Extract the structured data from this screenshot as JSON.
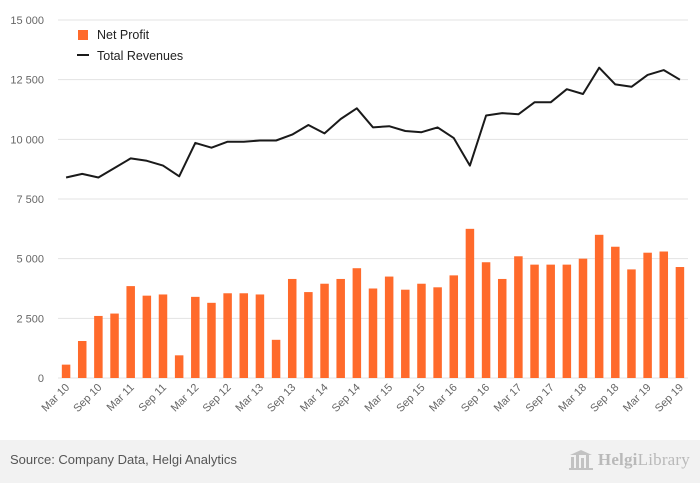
{
  "colors": {
    "bars": "#ff6a2b",
    "line": "#1a1a1a",
    "grid": "#e3e3e3",
    "axis_text": "#666666",
    "footer_bg": "#f2f2f2"
  },
  "footer": {
    "source": "Source: Company Data, Helgi Analytics",
    "brand_bold": "Helgi",
    "brand_regular": "Library"
  },
  "chart_data": {
    "type": "bar",
    "title": "",
    "xlabel": "",
    "ylabel": "",
    "ylim": [
      0,
      15000
    ],
    "yticks": [
      0,
      2500,
      5000,
      7500,
      10000,
      12500,
      15000
    ],
    "ytick_labels": [
      "0",
      "2 500",
      "5 000",
      "7 500",
      "10 000",
      "12 500",
      "15 000"
    ],
    "grid": "horizontal",
    "legend_position": "top-left",
    "categories": [
      "Mar 10",
      "Jun 10",
      "Sep 10",
      "Dec 10",
      "Mar 11",
      "Jun 11",
      "Sep 11",
      "Dec 11",
      "Mar 12",
      "Jun 12",
      "Sep 12",
      "Dec 12",
      "Mar 13",
      "Jun 13",
      "Sep 13",
      "Dec 13",
      "Mar 14",
      "Jun 14",
      "Sep 14",
      "Dec 14",
      "Mar 15",
      "Jun 15",
      "Sep 15",
      "Dec 15",
      "Mar 16",
      "Jun 16",
      "Sep 16",
      "Dec 16",
      "Mar 17",
      "Jun 17",
      "Sep 17",
      "Dec 17",
      "Mar 18",
      "Jun 18",
      "Sep 18",
      "Dec 18",
      "Mar 19",
      "Jun 19",
      "Sep 19"
    ],
    "visible_tick_labels": [
      "Mar 10",
      "Sep 10",
      "Mar 11",
      "Sep 11",
      "Mar 12",
      "Sep 12",
      "Mar 13",
      "Sep 13",
      "Mar 14",
      "Sep 14",
      "Mar 15",
      "Sep 15",
      "Mar 16",
      "Sep 16",
      "Mar 17",
      "Sep 17",
      "Mar 18",
      "Sep 18",
      "Mar 19",
      "Sep 19"
    ],
    "series": [
      {
        "name": "Net Profit",
        "type": "bar",
        "values": [
          560,
          1550,
          2600,
          2700,
          3850,
          3450,
          3500,
          950,
          3400,
          3150,
          3550,
          3550,
          3500,
          1600,
          4150,
          3600,
          3950,
          4150,
          4600,
          3750,
          4250,
          3700,
          3950,
          3800,
          4300,
          6250,
          4850,
          4150,
          5100,
          4750,
          4750,
          4750,
          5000,
          6000,
          5500,
          4550,
          5250,
          5300,
          4650
        ]
      },
      {
        "name": "Total Revenues",
        "type": "line",
        "values": [
          8400,
          8550,
          8400,
          8800,
          9200,
          9100,
          8900,
          8450,
          9850,
          9650,
          9900,
          9900,
          9950,
          9950,
          10200,
          10600,
          10250,
          10850,
          11300,
          10500,
          10550,
          10350,
          10300,
          10500,
          10050,
          8900,
          11000,
          11100,
          11050,
          11550,
          11550,
          12100,
          11900,
          13000,
          12300,
          12200,
          12700,
          12900,
          12500
        ]
      }
    ]
  }
}
